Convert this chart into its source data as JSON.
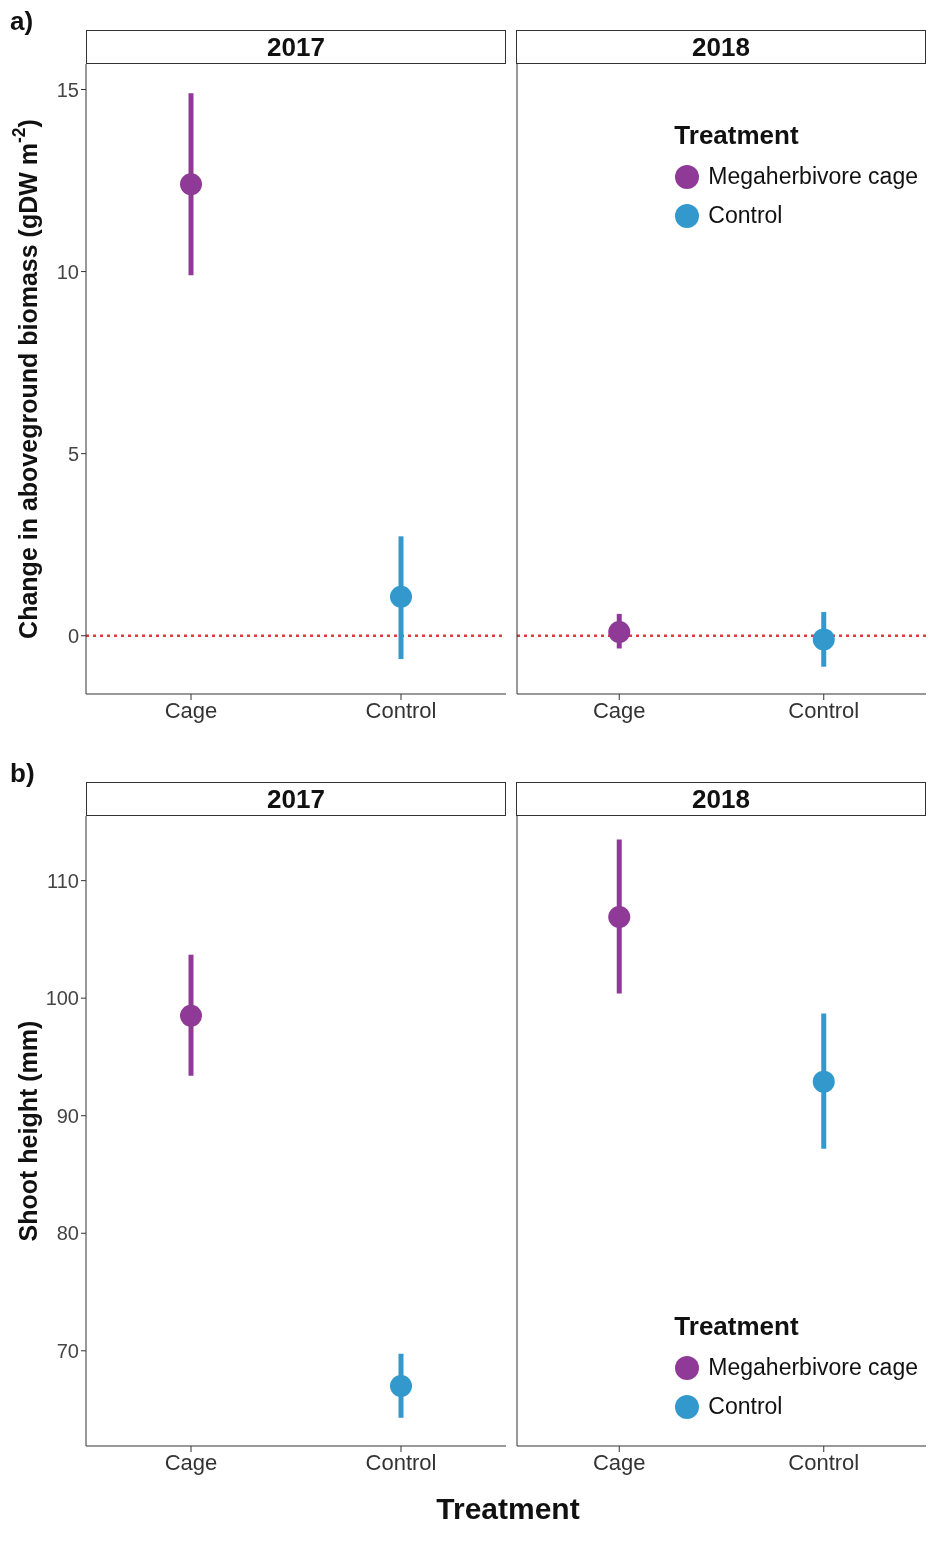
{
  "chart_data": [
    {
      "type": "scatter",
      "title": "2017",
      "ylabel": "Change in aboveground biomass (gDW m$^{-2}$)",
      "annotations": [
        "a)"
      ],
      "categories": [
        "Cage",
        "Control"
      ],
      "ylim": [
        -1.6,
        15.7
      ],
      "yticks": [
        0,
        5,
        10,
        15
      ],
      "marker": "circle",
      "grid": false,
      "ref_lines": [
        {
          "axis": "y",
          "value": 0,
          "color": "#e03a3a",
          "line_style": "dotted"
        }
      ],
      "series": [
        {
          "color": "#8e3a96",
          "values": [
            12.4,
            null
          ],
          "errors": [
            [
              9.9,
              14.9
            ],
            null
          ]
        },
        {
          "color": "#3399cc",
          "values": [
            null,
            1.07
          ],
          "errors": [
            null,
            [
              -0.64,
              2.73
            ]
          ]
        }
      ]
    },
    {
      "type": "scatter",
      "title": "2018",
      "categories": [
        "Cage",
        "Control"
      ],
      "ylim": [
        -1.6,
        15.7
      ],
      "yticks": [
        0,
        5,
        10,
        15
      ],
      "tick_labels": "x",
      "marker": "circle",
      "grid": false,
      "legend": "top right",
      "legend_title": "Treatment",
      "ref_lines": [
        {
          "axis": "y",
          "value": 0,
          "color": "#e03a3a",
          "line_style": "dotted"
        }
      ],
      "series": [
        {
          "name": "Megaherbivore cage",
          "color": "#8e3a96",
          "values": [
            0.1,
            null
          ],
          "errors": [
            [
              -0.35,
              0.6
            ],
            null
          ]
        },
        {
          "name": "Control",
          "color": "#3399cc",
          "values": [
            null,
            -0.1
          ],
          "errors": [
            null,
            [
              -0.85,
              0.65
            ]
          ]
        }
      ]
    },
    {
      "type": "scatter",
      "title": "2017",
      "ylabel": "Shoot height (mm)",
      "xlabel": "Treatment",
      "annotations": [
        "b)"
      ],
      "categories": [
        "Cage",
        "Control"
      ],
      "ylim": [
        61.9,
        115.5
      ],
      "yticks": [
        70,
        80,
        90,
        100,
        110
      ],
      "marker": "circle",
      "grid": false,
      "series": [
        {
          "color": "#8e3a96",
          "values": [
            98.5,
            null
          ],
          "errors": [
            [
              93.4,
              103.7
            ],
            null
          ]
        },
        {
          "color": "#3399cc",
          "values": [
            null,
            67.0
          ],
          "errors": [
            null,
            [
              64.3,
              69.75
            ]
          ]
        }
      ]
    },
    {
      "type": "scatter",
      "title": "2018",
      "categories": [
        "Cage",
        "Control"
      ],
      "ylim": [
        61.9,
        115.5
      ],
      "yticks": [
        70,
        80,
        90,
        100,
        110
      ],
      "tick_labels": "x",
      "marker": "circle",
      "grid": false,
      "legend": "bottom right",
      "legend_title": "Treatment",
      "series": [
        {
          "name": "Megaherbivore cage",
          "color": "#8e3a96",
          "values": [
            106.9,
            null
          ],
          "errors": [
            [
              100.4,
              113.5
            ],
            null
          ]
        },
        {
          "name": "Control",
          "color": "#3399cc",
          "values": [
            null,
            92.9
          ],
          "errors": [
            null,
            [
              87.2,
              98.7
            ]
          ]
        }
      ]
    }
  ]
}
